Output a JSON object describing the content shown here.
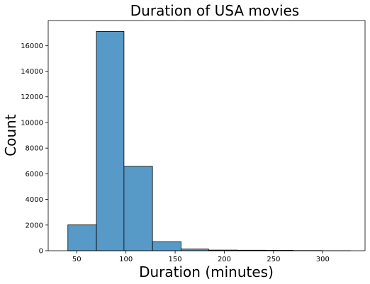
{
  "chart_data": {
    "type": "bar",
    "title": "Duration of USA movies",
    "xlabel": "Duration (minutes)",
    "ylabel": "Count",
    "bar_color": "#5799c7",
    "edge_color": "#000000",
    "bin_edges": [
      41,
      70,
      98,
      127,
      156,
      184,
      213,
      242,
      270,
      299,
      328
    ],
    "values": [
      2020,
      17100,
      6580,
      700,
      130,
      50,
      40,
      30,
      15,
      5
    ],
    "xlim": [
      21,
      343
    ],
    "ylim": [
      0,
      17950
    ],
    "xticks": [
      50,
      100,
      150,
      200,
      250,
      300
    ],
    "yticks": [
      0,
      2000,
      4000,
      6000,
      8000,
      10000,
      12000,
      14000,
      16000
    ],
    "grid": false
  }
}
